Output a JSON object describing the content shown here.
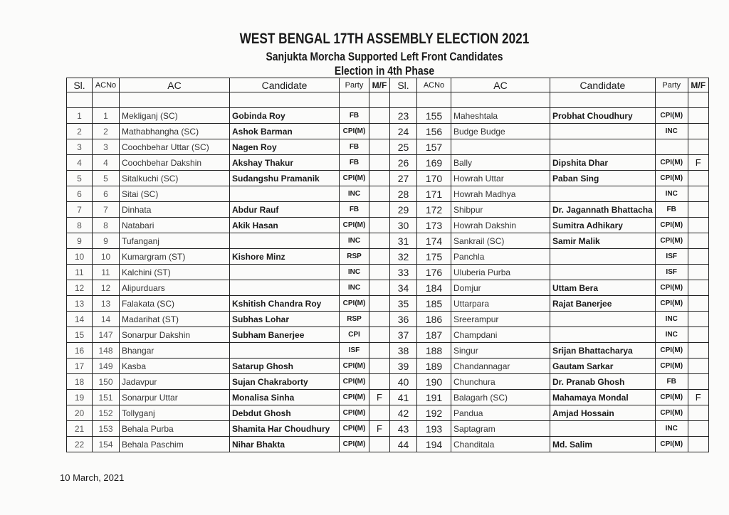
{
  "title": "WEST BENGAL 17TH ASSEMBLY ELECTION 2021",
  "subtitle": "Sanjukta Morcha Supported Left Front Candidates",
  "phase": "Election in 4th Phase",
  "columns": [
    "Sl.",
    "ACNo",
    "AC",
    "Candidate",
    "Party",
    "M/F"
  ],
  "left_rows": [
    [
      "1",
      "1",
      "Mekliganj (SC)",
      "Gobinda Roy",
      "FB",
      ""
    ],
    [
      "2",
      "2",
      "Mathabhangha (SC)",
      "Ashok Barman",
      "CPI(M)",
      ""
    ],
    [
      "3",
      "3",
      "Coochbehar Uttar (SC)",
      "Nagen Roy",
      "FB",
      ""
    ],
    [
      "4",
      "4",
      "Coochbehar Dakshin",
      "Akshay Thakur",
      "FB",
      ""
    ],
    [
      "5",
      "5",
      "Sitalkuchi (SC)",
      "Sudangshu Pramanik",
      "CPI(M)",
      ""
    ],
    [
      "6",
      "6",
      "Sitai (SC)",
      "",
      "INC",
      ""
    ],
    [
      "7",
      "7",
      "Dinhata",
      "Abdur Rauf",
      "FB",
      ""
    ],
    [
      "8",
      "8",
      "Natabari",
      "Akik Hasan",
      "CPI(M)",
      ""
    ],
    [
      "9",
      "9",
      "Tufanganj",
      "",
      "INC",
      ""
    ],
    [
      "10",
      "10",
      "Kumargram (ST)",
      "Kishore Minz",
      "RSP",
      ""
    ],
    [
      "11",
      "11",
      "Kalchini (ST)",
      "",
      "INC",
      ""
    ],
    [
      "12",
      "12",
      "Alipurduars",
      "",
      "INC",
      ""
    ],
    [
      "13",
      "13",
      "Falakata (SC)",
      "Kshitish Chandra Roy",
      "CPI(M)",
      ""
    ],
    [
      "14",
      "14",
      "Madarihat (ST)",
      "Subhas Lohar",
      "RSP",
      ""
    ],
    [
      "15",
      "147",
      "Sonarpur Dakshin",
      "Subham Banerjee",
      "CPI",
      ""
    ],
    [
      "16",
      "148",
      "Bhangar",
      "",
      "ISF",
      ""
    ],
    [
      "17",
      "149",
      "Kasba",
      "Satarup Ghosh",
      "CPI(M)",
      ""
    ],
    [
      "18",
      "150",
      "Jadavpur",
      "Sujan Chakraborty",
      "CPI(M)",
      ""
    ],
    [
      "19",
      "151",
      "Sonarpur Uttar",
      "Monalisa Sinha",
      "CPI(M)",
      "F"
    ],
    [
      "20",
      "152",
      "Tollyganj",
      "Debdut Ghosh",
      "CPI(M)",
      ""
    ],
    [
      "21",
      "153",
      "Behala Purba",
      "Shamita Har Choudhury",
      "CPI(M)",
      "F"
    ],
    [
      "22",
      "154",
      "Behala Paschim",
      "Nihar Bhakta",
      "CPI(M)",
      ""
    ]
  ],
  "right_rows": [
    [
      "23",
      "155",
      "Maheshtala",
      "Probhat Choudhury",
      "CPI(M)",
      ""
    ],
    [
      "24",
      "156",
      "Budge Budge",
      "",
      "INC",
      ""
    ],
    [
      "25",
      "157",
      "",
      "",
      "",
      ""
    ],
    [
      "26",
      "169",
      "Bally",
      "Dipshita Dhar",
      "CPI(M)",
      "F"
    ],
    [
      "27",
      "170",
      "Howrah Uttar",
      "Paban Sing",
      "CPI(M)",
      ""
    ],
    [
      "28",
      "171",
      "Howrah Madhya",
      "",
      "INC",
      ""
    ],
    [
      "29",
      "172",
      "Shibpur",
      "Dr. Jagannath Bhattacha",
      "FB",
      ""
    ],
    [
      "30",
      "173",
      "Howrah Dakshin",
      "Sumitra Adhikary",
      "CPI(M)",
      ""
    ],
    [
      "31",
      "174",
      "Sankrail (SC)",
      "Samir Malik",
      "CPI(M)",
      ""
    ],
    [
      "32",
      "175",
      "Panchla",
      "",
      "ISF",
      ""
    ],
    [
      "33",
      "176",
      "Uluberia Purba",
      "",
      "ISF",
      ""
    ],
    [
      "34",
      "184",
      "Domjur",
      "Uttam Bera",
      "CPI(M)",
      ""
    ],
    [
      "35",
      "185",
      "Uttarpara",
      "Rajat Banerjee",
      "CPI(M)",
      ""
    ],
    [
      "36",
      "186",
      "Sreerampur",
      "",
      "INC",
      ""
    ],
    [
      "37",
      "187",
      "Champdani",
      "",
      "INC",
      ""
    ],
    [
      "38",
      "188",
      "Singur",
      "Srijan Bhattacharya",
      "CPI(M)",
      ""
    ],
    [
      "39",
      "189",
      "Chandannagar",
      "Gautam Sarkar",
      "CPI(M)",
      ""
    ],
    [
      "40",
      "190",
      "Chunchura",
      "Dr. Pranab Ghosh",
      "FB",
      ""
    ],
    [
      "41",
      "191",
      "Balagarh (SC)",
      "Mahamaya Mondal",
      "CPI(M)",
      "F"
    ],
    [
      "42",
      "192",
      "Pandua",
      "Amjad Hossain",
      "CPI(M)",
      ""
    ],
    [
      "43",
      "193",
      "Saptagram",
      "",
      "INC",
      ""
    ],
    [
      "44",
      "194",
      "Chanditala",
      "Md. Salim",
      "CPI(M)",
      ""
    ]
  ],
  "footer_date": "10 March, 2021"
}
